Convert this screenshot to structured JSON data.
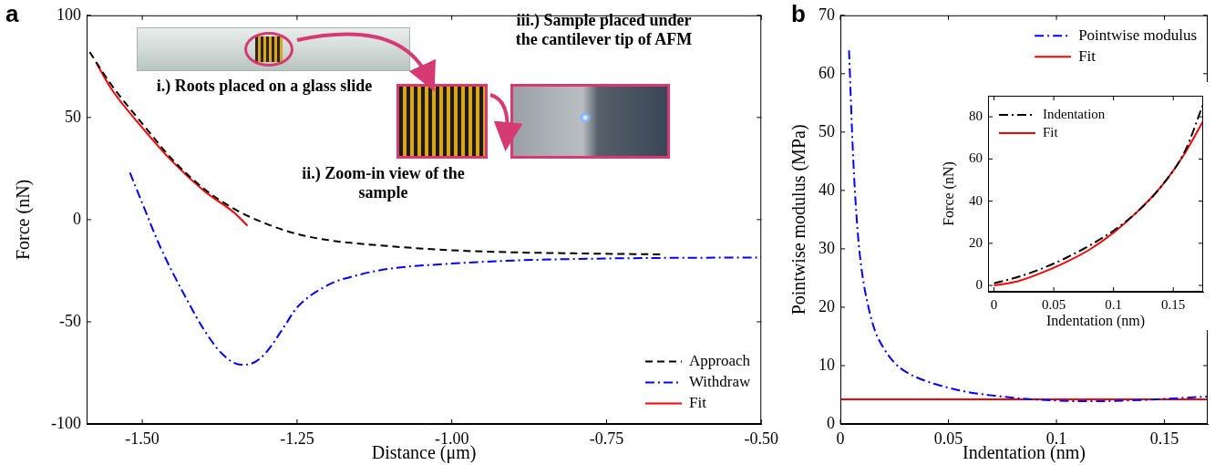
{
  "chart_data": [
    {
      "type": "line",
      "panel_label": "a",
      "x_label": "Distance (μm)",
      "y_label": "Force (nN)",
      "xlim": [
        -1.59,
        -0.5
      ],
      "xticks": [
        {
          "value": -1.5,
          "label": "-1.50"
        },
        {
          "value": -1.25,
          "label": "-1.25"
        },
        {
          "value": -1.0,
          "label": "-1.00"
        },
        {
          "value": -0.75,
          "label": "-0.75"
        },
        {
          "value": -0.5,
          "label": "-0.50"
        }
      ],
      "ylim": [
        -100,
        100
      ],
      "yticks": [
        -100,
        -50,
        0,
        50,
        100
      ],
      "grid": false,
      "legend": "lower right",
      "annotations": [
        "i.) Roots placed on a glass slide",
        "ii.) Zoom-in view of the sample",
        "iii.) Sample placed under the cantilever tip of AFM"
      ],
      "series": [
        {
          "name": "Approach",
          "color": "#000000",
          "line_style": "dashed",
          "x": [
            -1.585,
            -1.55,
            -1.5,
            -1.45,
            -1.4,
            -1.35,
            -1.3,
            -1.25,
            -1.2,
            -1.1,
            -1.0,
            -0.9,
            -0.8,
            -0.66
          ],
          "values": [
            82,
            66,
            47,
            29,
            15,
            5,
            -2,
            -7,
            -10,
            -13,
            -15,
            -16,
            -16.5,
            -17
          ]
        },
        {
          "name": "Withdraw",
          "color": "#0000ff",
          "line_style": "dashdot",
          "x": [
            -1.52,
            -1.5,
            -1.47,
            -1.43,
            -1.4,
            -1.37,
            -1.34,
            -1.32,
            -1.3,
            -1.27,
            -1.25,
            -1.2,
            -1.15,
            -1.1,
            -1.0,
            -0.9,
            -0.75,
            -0.5
          ],
          "values": [
            23,
            8,
            -14,
            -38,
            -54,
            -66,
            -71,
            -70,
            -65,
            -52,
            -43,
            -32,
            -27,
            -24,
            -21.5,
            -20,
            -19,
            -18.5
          ]
        },
        {
          "name": "Fit",
          "color": "#ff0000",
          "line_style": "solid",
          "x": [
            -1.575,
            -1.55,
            -1.5,
            -1.45,
            -1.4,
            -1.35,
            -1.33
          ],
          "values": [
            77,
            64,
            45,
            28,
            14,
            3,
            -3
          ]
        }
      ]
    },
    {
      "type": "line",
      "panel_label": "b",
      "x_label": "Indentation (nm)",
      "y_label": "Pointwise modulus (MPa)",
      "xlim": [
        0,
        0.17
      ],
      "xticks": [
        0,
        0.05,
        0.1,
        0.15
      ],
      "ylim": [
        0,
        70
      ],
      "yticks": [
        0,
        10,
        20,
        30,
        40,
        50,
        60,
        70
      ],
      "grid": false,
      "legend": "upper right",
      "series": [
        {
          "name": "Pointwise modulus",
          "color": "#0000ff",
          "line_style": "dashdot",
          "x": [
            0.004,
            0.006,
            0.008,
            0.01,
            0.013,
            0.016,
            0.02,
            0.025,
            0.03,
            0.04,
            0.05,
            0.06,
            0.07,
            0.08,
            0.09,
            0.1,
            0.11,
            0.12,
            0.13,
            0.14,
            0.15,
            0.16,
            0.17
          ],
          "values": [
            64,
            45,
            33,
            26,
            20,
            16,
            13,
            10.5,
            9,
            7.3,
            6.2,
            5.4,
            4.9,
            4.5,
            4.2,
            4.0,
            3.9,
            3.9,
            4.0,
            4.1,
            4.3,
            4.5,
            4.7
          ]
        },
        {
          "name": "Fit",
          "color": "#ff0000",
          "line_style": "solid",
          "x": [
            0,
            0.17
          ],
          "values": [
            4.2,
            4.2
          ]
        }
      ]
    },
    {
      "type": "line",
      "x_label": "Indentation (nm)",
      "y_label": "Force (nN)",
      "xlim": [
        -0.005,
        0.175
      ],
      "xticks": [
        0,
        0.05,
        0.1,
        0.15
      ],
      "ylim": [
        -3,
        90
      ],
      "yticks": [
        0,
        20,
        40,
        60,
        80
      ],
      "grid": false,
      "legend": "upper left",
      "series": [
        {
          "name": "Indentation",
          "color": "#000000",
          "line_style": "dashdot",
          "x": [
            0,
            0.02,
            0.04,
            0.06,
            0.08,
            0.1,
            0.12,
            0.14,
            0.16,
            0.175
          ],
          "values": [
            1,
            4,
            8,
            13,
            19,
            26,
            35,
            47,
            64,
            86
          ]
        },
        {
          "name": "Fit",
          "color": "#ff0000",
          "line_style": "solid",
          "x": [
            0,
            0.02,
            0.04,
            0.06,
            0.08,
            0.1,
            0.12,
            0.14,
            0.16,
            0.175
          ],
          "values": [
            0,
            2,
            6,
            11,
            17,
            25,
            35,
            47,
            63,
            78
          ]
        }
      ]
    }
  ]
}
